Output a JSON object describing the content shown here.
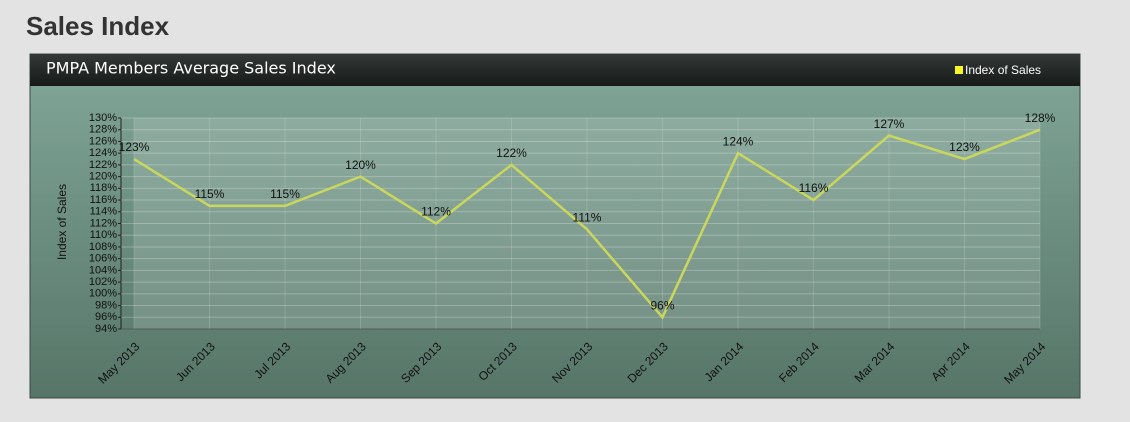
{
  "page_title": "Sales Index",
  "chart_data": {
    "type": "line",
    "title": "PMPA Members Average Sales Index",
    "y_label": "Index of Sales",
    "categories": [
      "May 2013",
      "Jun 2013",
      "Jul 2013",
      "Aug 2013",
      "Sep 2013",
      "Oct 2013",
      "Nov 2013",
      "Dec 2013",
      "Jan 2014",
      "Feb 2014",
      "Mar 2014",
      "Apr 2014",
      "May 2014"
    ],
    "series": [
      {
        "name": "Index of Sales",
        "color": "#c9d85c",
        "values": [
          123,
          115,
          115,
          120,
          112,
          122,
          111,
          96,
          124,
          116,
          127,
          123,
          128
        ],
        "value_labels": [
          "123%",
          "115%",
          "115%",
          "120%",
          "112%",
          "122%",
          "111%",
          "96%",
          "124%",
          "116%",
          "127%",
          "123%",
          "128%"
        ]
      }
    ],
    "ylim": [
      94,
      130
    ],
    "yticks": [
      {
        "value": 94,
        "label": "94%"
      },
      {
        "value": 96,
        "label": "96%"
      },
      {
        "value": 98,
        "label": "98%"
      },
      {
        "value": 100,
        "label": "100%"
      },
      {
        "value": 102,
        "label": "102%"
      },
      {
        "value": 104,
        "label": "104%"
      },
      {
        "value": 106,
        "label": "106%"
      },
      {
        "value": 108,
        "label": "108%"
      },
      {
        "value": 110,
        "label": "110%"
      },
      {
        "value": 112,
        "label": "112%"
      },
      {
        "value": 114,
        "label": "114%"
      },
      {
        "value": 116,
        "label": "116%"
      },
      {
        "value": 118,
        "label": "118%"
      },
      {
        "value": 120,
        "label": "120%"
      },
      {
        "value": 122,
        "label": "122%"
      },
      {
        "value": 124,
        "label": "124%"
      },
      {
        "value": 126,
        "label": "126%"
      },
      {
        "value": 128,
        "label": "128%"
      },
      {
        "value": 130,
        "label": "130%"
      }
    ],
    "grid": true,
    "legend": "top-right"
  }
}
